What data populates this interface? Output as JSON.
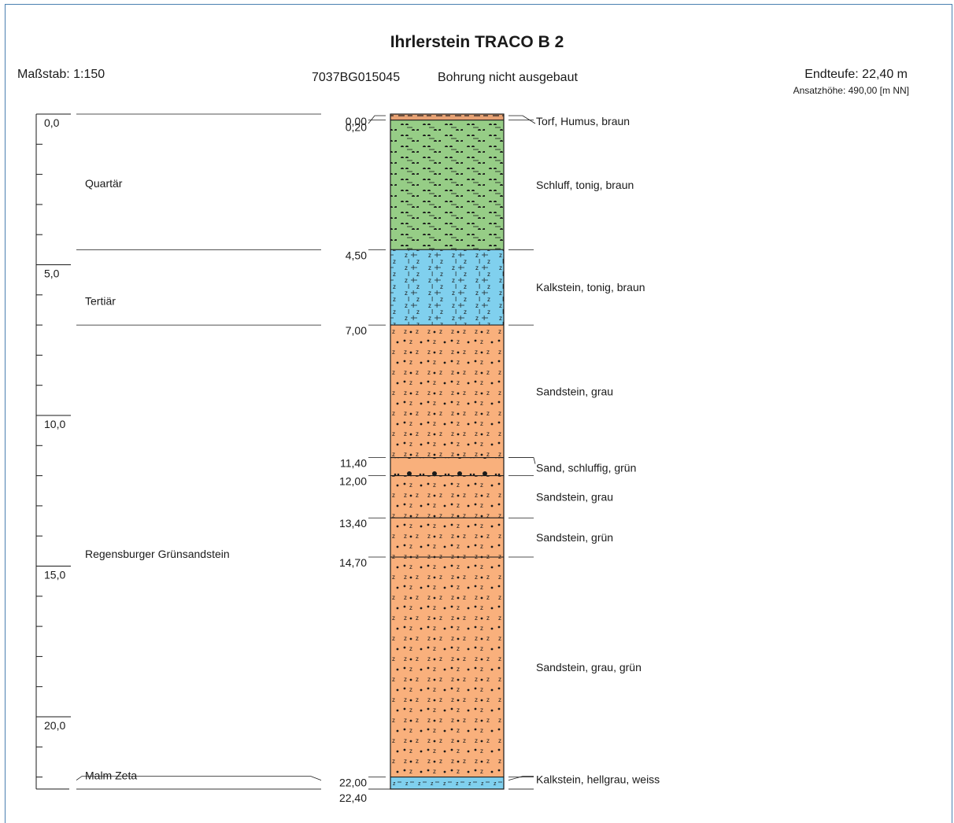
{
  "header": {
    "title": "Ihrlerstein TRACO B 2",
    "scale_label": "Maßstab: 1:150",
    "borehole_id": "7037BG015045",
    "status": "Bohrung nicht ausgebaut",
    "end_depth": "Endteufe: 22,40 m",
    "start_height": "Ansatzhöhe: 490,00 [m NN]"
  },
  "scale": {
    "ticks": [
      "0,0",
      "5,0",
      "10,0",
      "15,0",
      "20,0"
    ]
  },
  "colors": {
    "torf": "#e6a173",
    "schluff": "#96cd86",
    "kalkstein": "#80d0ee",
    "sandstein": "#f9b07c",
    "frame": "#4a7fb0"
  },
  "stratigraphy": [
    {
      "name": "Quartär",
      "top": 0.0,
      "bottom": 4.5,
      "label_depth": 2.3
    },
    {
      "name": "Tertiär",
      "top": 4.5,
      "bottom": 7.0,
      "label_depth": 6.2
    },
    {
      "name": "Regensburger Grünsandstein",
      "top": 7.0,
      "bottom": 22.0,
      "label_depth": 14.6
    },
    {
      "name": "Malm Zeta",
      "top": 22.0,
      "bottom": 22.4,
      "label_depth": 21.95
    }
  ],
  "layers": [
    {
      "top": 0.0,
      "bottom": 0.2,
      "top_label": "0,00",
      "bottom_label": "0,20",
      "description": "Torf, Humus,  braun",
      "pattern": "torf",
      "color": "#e6a173"
    },
    {
      "top": 0.2,
      "bottom": 4.5,
      "top_label": "0,20",
      "bottom_label": "4,50",
      "description": "Schluff, tonig,  braun",
      "pattern": "schluff",
      "color": "#96cd86"
    },
    {
      "top": 4.5,
      "bottom": 7.0,
      "top_label": "4,50",
      "bottom_label": "7,00",
      "description": "Kalkstein, tonig,  braun",
      "pattern": "kalk",
      "color": "#80d0ee"
    },
    {
      "top": 7.0,
      "bottom": 11.4,
      "top_label": "7,00",
      "bottom_label": "11,40",
      "description": "Sandstein,  grau",
      "pattern": "sandstein",
      "color": "#f9b07c"
    },
    {
      "top": 11.4,
      "bottom": 12.0,
      "top_label": "11,40",
      "bottom_label": "12,00",
      "description": "Sand, schluffig,  grün",
      "pattern": "sand",
      "color": "#f9b07c"
    },
    {
      "top": 12.0,
      "bottom": 13.4,
      "top_label": "12,00",
      "bottom_label": "13,40",
      "description": "Sandstein,  grau",
      "pattern": "sandstein",
      "color": "#f9b07c"
    },
    {
      "top": 13.4,
      "bottom": 14.7,
      "top_label": "13,40",
      "bottom_label": "14,70",
      "description": "Sandstein,  grün",
      "pattern": "sandstein",
      "color": "#f9b07c"
    },
    {
      "top": 14.7,
      "bottom": 22.0,
      "top_label": "14,70",
      "bottom_label": "22,00",
      "description": "Sandstein,  grau, grün",
      "pattern": "sandstein",
      "color": "#f9b07c"
    },
    {
      "top": 22.0,
      "bottom": 22.4,
      "top_label": "22,00",
      "bottom_label": "22,40",
      "description": "Kalkstein,  hellgrau, weiss",
      "pattern": "kalk2",
      "color": "#80d0ee"
    }
  ]
}
